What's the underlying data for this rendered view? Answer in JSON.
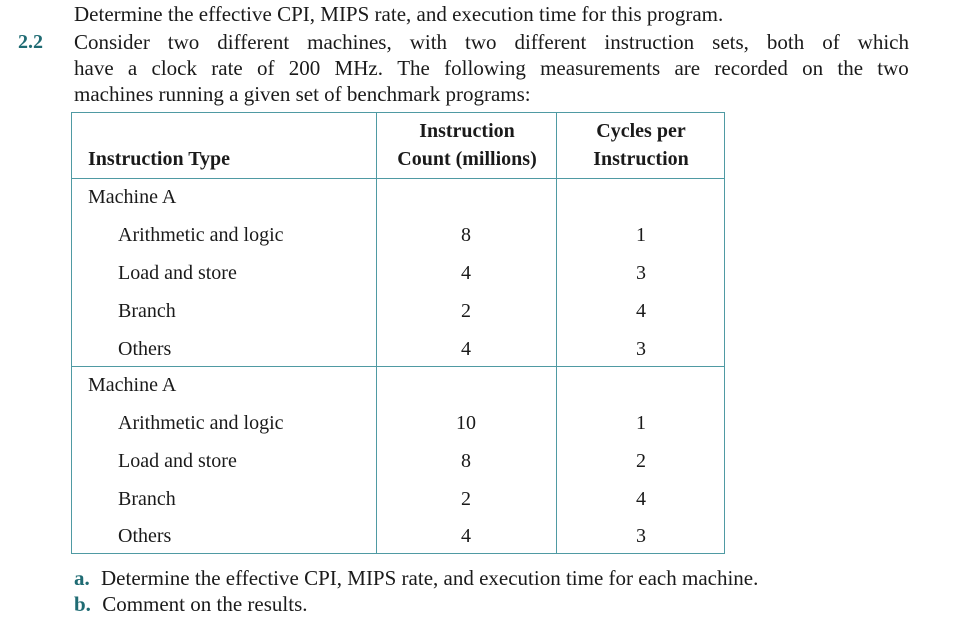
{
  "intro_line": "Determine the effective CPI, MIPS rate, and execution time for this program.",
  "problem": {
    "number": "2.2",
    "text_line1_words": [
      "Consider",
      "two",
      "different",
      "machines,",
      "with",
      "two",
      "different",
      "instruction",
      "sets,",
      "both",
      "of",
      "which"
    ],
    "text_line2_words": [
      "have",
      "a",
      "clock",
      "rate",
      "of",
      "200",
      "MHz.",
      "The",
      "following",
      "measurements",
      "are",
      "recorded",
      "on",
      "the",
      "two"
    ],
    "text_line3": "machines running a given set of benchmark programs:"
  },
  "table": {
    "headers": {
      "col1": "Instruction Type",
      "col2_line1": "Instruction",
      "col2_line2": "Count (millions)",
      "col3_line1": "Cycles per",
      "col3_line2": "Instruction"
    },
    "groups": [
      {
        "name": "Machine A",
        "rows": [
          {
            "type": "Arithmetic and logic",
            "count": "8",
            "cpi": "1"
          },
          {
            "type": "Load and store",
            "count": "4",
            "cpi": "3"
          },
          {
            "type": "Branch",
            "count": "2",
            "cpi": "4"
          },
          {
            "type": "Others",
            "count": "4",
            "cpi": "3"
          }
        ]
      },
      {
        "name": "Machine A",
        "rows": [
          {
            "type": "Arithmetic and logic",
            "count": "10",
            "cpi": "1"
          },
          {
            "type": "Load and store",
            "count": "8",
            "cpi": "2"
          },
          {
            "type": "Branch",
            "count": "2",
            "cpi": "4"
          },
          {
            "type": "Others",
            "count": "4",
            "cpi": "3"
          }
        ]
      }
    ]
  },
  "subquestions": [
    {
      "label": "a.",
      "text": "Determine the effective CPI, MIPS rate, and execution time for each machine."
    },
    {
      "label": "b.",
      "text": "Comment on the results."
    }
  ],
  "colors": {
    "accent": "#1f6b73",
    "table_border": "#4f9aa3"
  }
}
